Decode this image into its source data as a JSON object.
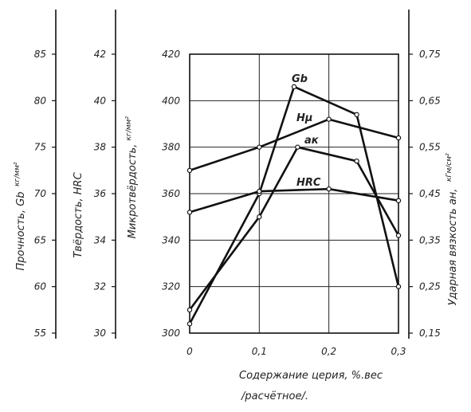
{
  "chart_data": {
    "type": "line",
    "x": [
      0,
      0.1,
      0.2,
      0.3
    ],
    "xlim": [
      0,
      0.3
    ],
    "xticks": [
      0,
      0.1,
      0.2,
      0.3
    ],
    "xtick_labels": [
      "0",
      "0,1",
      "0,2",
      "0,3"
    ],
    "xlabel": "Содержание церия, %.вес",
    "xlabel_line2": "/расчётное/.",
    "grid": true,
    "axes": [
      {
        "id": "strength",
        "title": "Прочность, Gb",
        "unit": "кг/мм²",
        "ylim": [
          55,
          85
        ],
        "ticks": [
          55,
          60,
          65,
          70,
          75,
          80,
          85
        ],
        "tick_labels": [
          "55",
          "60",
          "65",
          "70",
          "75",
          "80",
          "85"
        ],
        "position": "outer-left"
      },
      {
        "id": "hardness",
        "title": "Твёрдость, HRC",
        "ylim": [
          30,
          42
        ],
        "ticks": [
          30,
          32,
          34,
          36,
          38,
          40,
          42
        ],
        "tick_labels": [
          "30",
          "32",
          "34",
          "36",
          "38",
          "40",
          "42"
        ],
        "position": "middle-left"
      },
      {
        "id": "microhardness",
        "title": "Микротвёрдость,",
        "unit": "кг/мм²",
        "ylim": [
          300,
          420
        ],
        "ticks": [
          300,
          320,
          340,
          360,
          380,
          400,
          420
        ],
        "tick_labels": [
          "300",
          "320",
          "340",
          "360",
          "380",
          "400",
          "420"
        ],
        "position": "inner-left"
      },
      {
        "id": "impact",
        "title": "Ударная вязкость aн,",
        "unit": "кГм/см²",
        "ylim": [
          0.15,
          0.75
        ],
        "ticks": [
          0.15,
          0.25,
          0.35,
          0.45,
          0.55,
          0.65,
          0.75
        ],
        "tick_labels": [
          "0,15",
          "0,25",
          "0,35",
          "0,45",
          "0,55",
          "0,65",
          "0,75"
        ],
        "position": "right"
      }
    ],
    "series": [
      {
        "name": "Gb",
        "axis": "strength",
        "x": [
          0,
          0.1,
          0.15,
          0.24,
          0.3
        ],
        "values": [
          56,
          70,
          81.5,
          78.5,
          60
        ]
      },
      {
        "name": "Hμ",
        "axis": "microhardness",
        "x": [
          0,
          0.1,
          0.2,
          0.3
        ],
        "values": [
          370,
          380,
          392,
          384
        ]
      },
      {
        "name": "ак",
        "axis": "impact",
        "x": [
          0,
          0.1,
          0.155,
          0.24,
          0.3
        ],
        "values": [
          0.2,
          0.4,
          0.55,
          0.52,
          0.36
        ]
      },
      {
        "name": "HRC",
        "axis": "hardness",
        "x": [
          0,
          0.1,
          0.2,
          0.3
        ],
        "values": [
          35.2,
          36.1,
          36.2,
          35.7
        ]
      }
    ]
  }
}
